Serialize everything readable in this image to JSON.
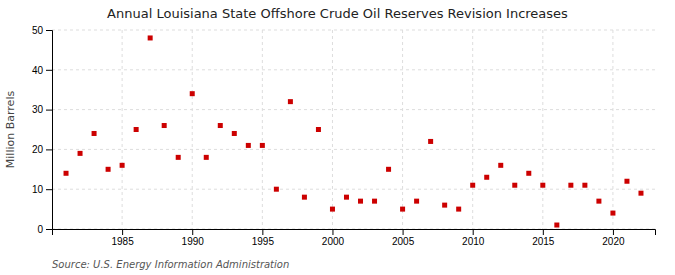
{
  "chart_data": {
    "type": "scatter",
    "title": "Annual Louisiana State Offshore Crude Oil Reserves Revision Increases",
    "ylabel": "Million Barrels",
    "source": "Source: U.S. Energy Information Administration",
    "color": "#cc0000",
    "marker": "square",
    "grid": true,
    "xlim": [
      1980,
      2023
    ],
    "ylim": [
      0,
      50
    ],
    "yticks": [
      0,
      10,
      20,
      30,
      40,
      50
    ],
    "xticks": [
      1985,
      1990,
      1995,
      2000,
      2005,
      2010,
      2015,
      2020
    ],
    "x": [
      1981,
      1982,
      1983,
      1984,
      1985,
      1986,
      1987,
      1988,
      1989,
      1990,
      1991,
      1992,
      1993,
      1994,
      1995,
      1996,
      1997,
      1998,
      1999,
      2000,
      2001,
      2002,
      2003,
      2004,
      2005,
      2006,
      2007,
      2008,
      2009,
      2010,
      2011,
      2012,
      2013,
      2014,
      2015,
      2016,
      2017,
      2018,
      2019,
      2020,
      2021,
      2022
    ],
    "values": [
      14,
      19,
      24,
      15,
      16,
      25,
      48,
      26,
      18,
      34,
      18,
      26,
      24,
      21,
      21,
      10,
      32,
      8,
      25,
      5,
      8,
      7,
      7,
      15,
      5,
      7,
      22,
      6,
      5,
      11,
      13,
      16,
      11,
      14,
      11,
      1,
      11,
      11,
      7,
      4,
      12,
      9
    ]
  }
}
